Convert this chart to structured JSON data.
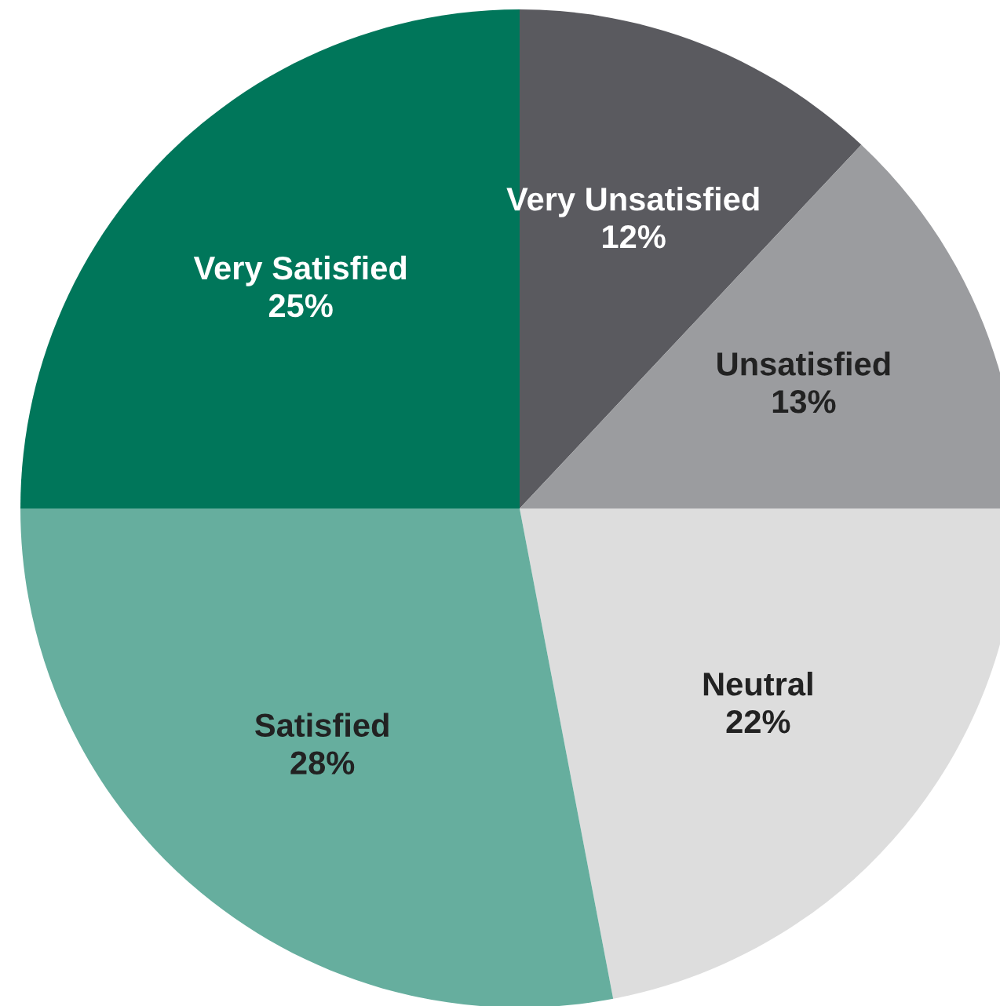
{
  "chart_data": {
    "type": "pie",
    "categories": [
      "Very Unsatisfied",
      "Unsatisfied",
      "Neutral",
      "Satisfied",
      "Very Satisfied"
    ],
    "values": [
      12,
      13,
      22,
      28,
      25
    ],
    "colors": [
      "#5a5a5f",
      "#9b9c9f",
      "#dddddd",
      "#66ae9e",
      "#00765a"
    ],
    "value_labels": [
      "12%",
      "13%",
      "22%",
      "28%",
      "25%"
    ]
  }
}
